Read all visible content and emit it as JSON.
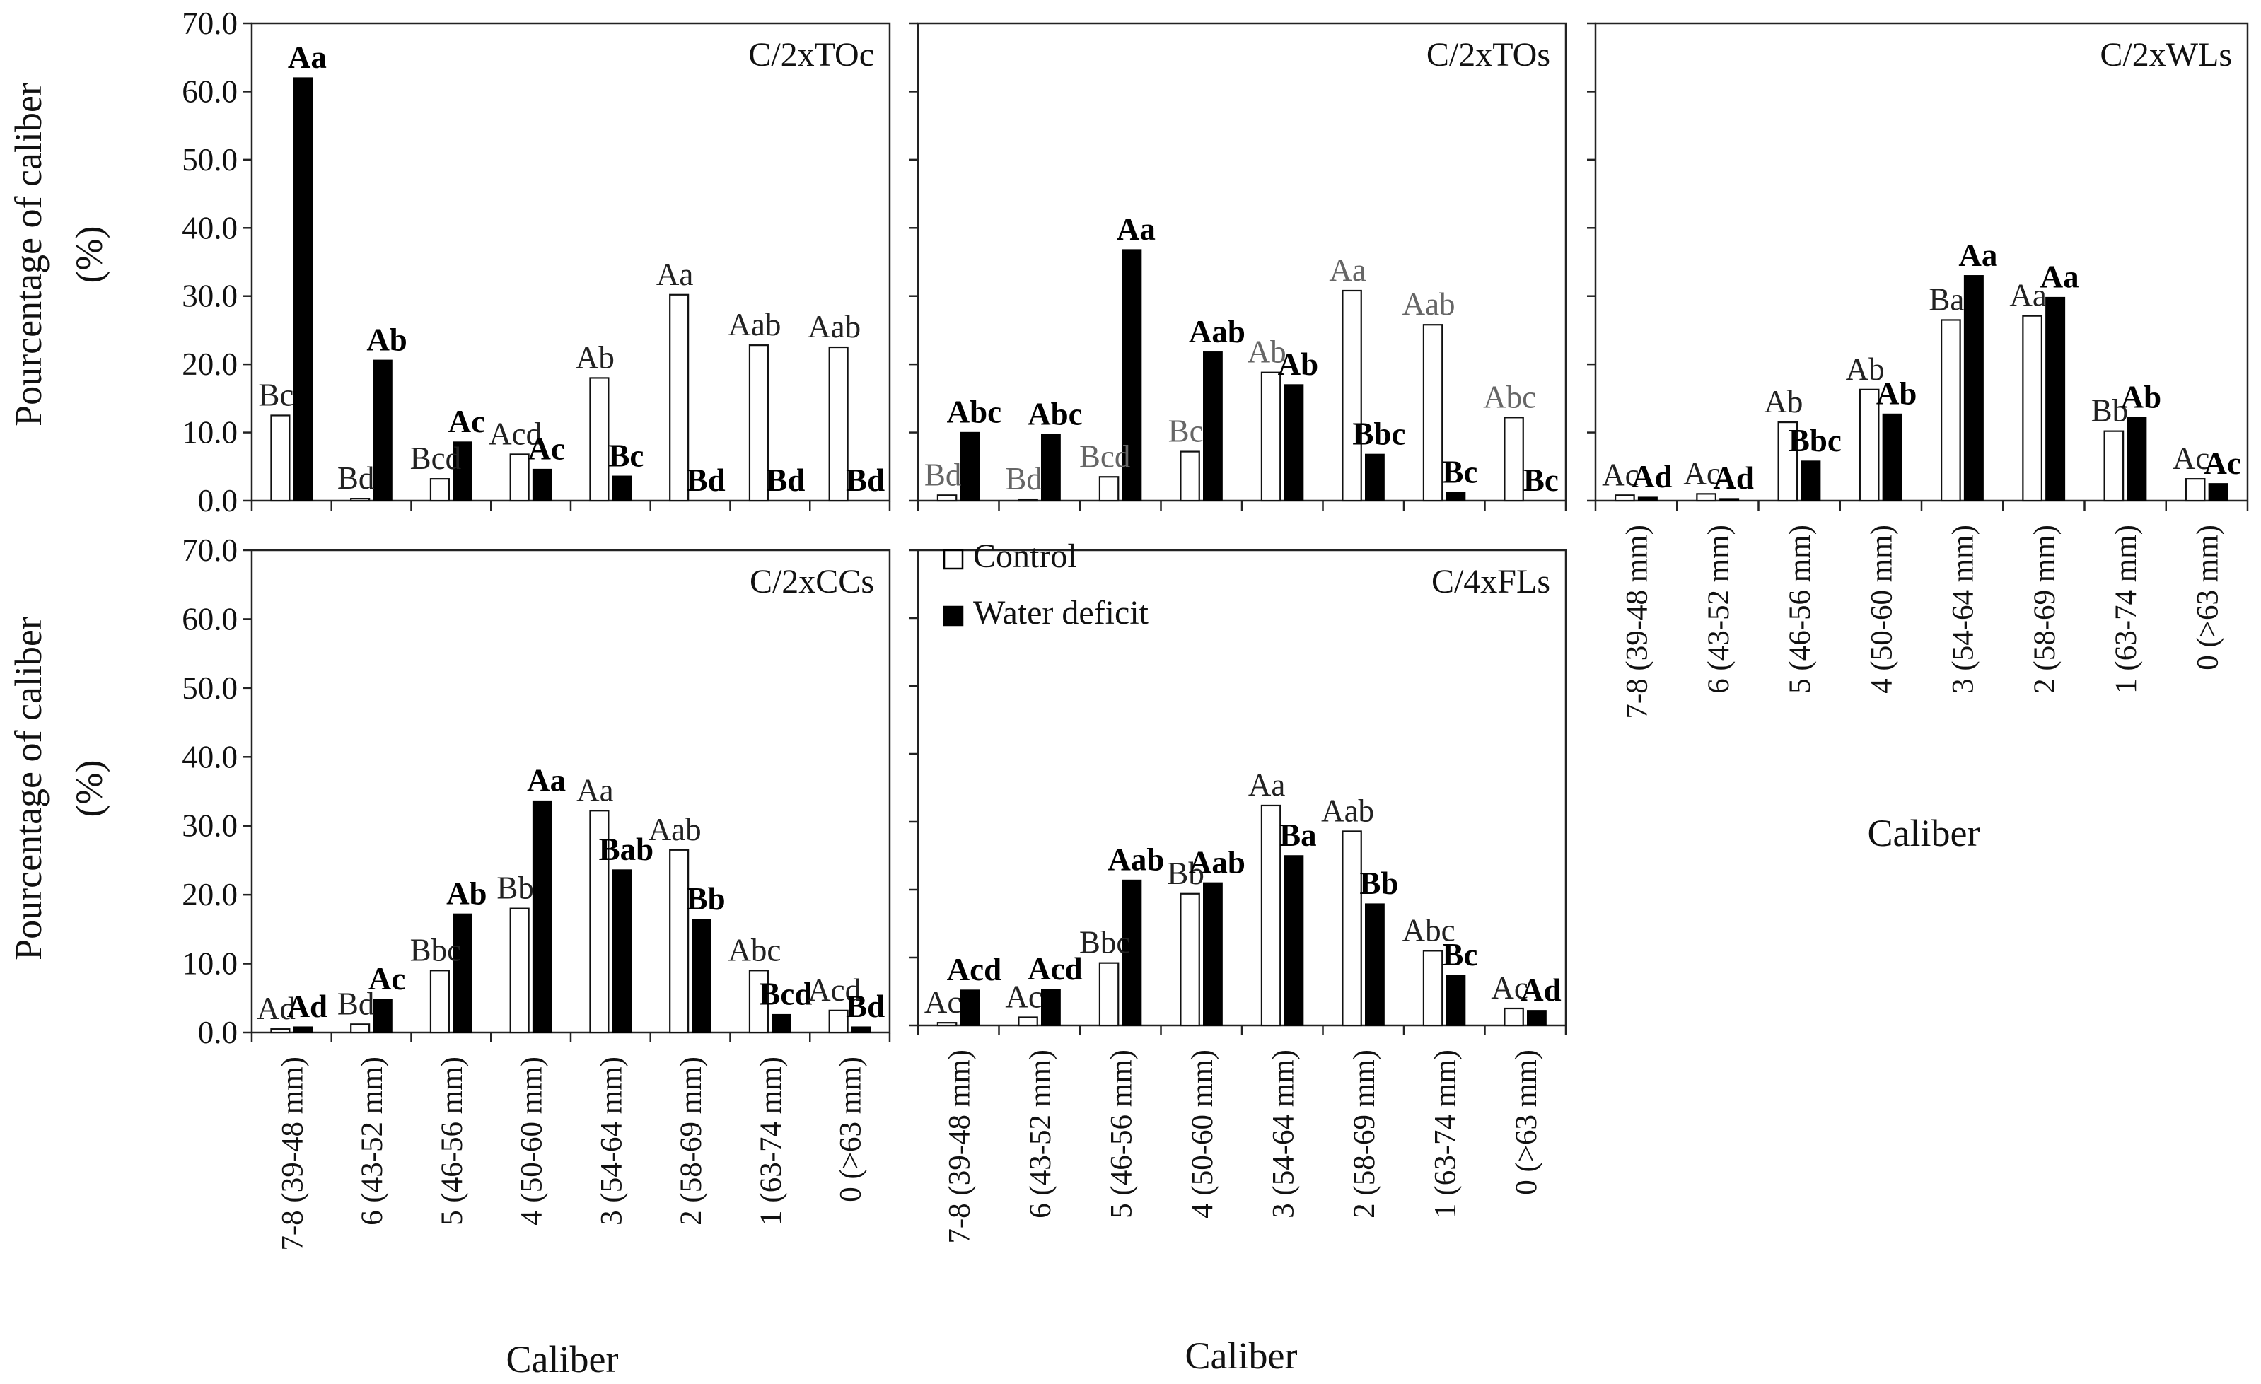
{
  "chart_data": {
    "type": "bar",
    "y_axis_label_line1": "Pourcentage of caliber",
    "y_axis_label_line2": "(%)",
    "x_axis_label": "Caliber",
    "categories": [
      "7-8 (39-48 mm)",
      "6 (43-52 mm)",
      "5 (46-56 mm)",
      "4 (50-60 mm)",
      "3 (54-64 mm)",
      "2 (58-69 mm)",
      "1 (63-74 mm)",
      "0 (>63 mm)"
    ],
    "ylim": [
      0,
      70
    ],
    "yticks": [
      "0.0",
      "10.0",
      "20.0",
      "30.0",
      "40.0",
      "50.0",
      "60.0",
      "70.0"
    ],
    "legend": {
      "control": "Control",
      "water_deficit": "Water deficit"
    },
    "panels": [
      {
        "title": "C/2xTOc",
        "series": [
          {
            "name": "Control",
            "values": [
              12.5,
              0.3,
              3.2,
              6.8,
              18.0,
              30.2,
              22.8,
              22.5
            ],
            "labels": [
              "Bc",
              "Bd",
              "Bcd",
              "Acd",
              "Ab",
              "Aa",
              "Aab",
              "Aab"
            ]
          },
          {
            "name": "Water deficit",
            "values": [
              62.0,
              20.6,
              8.6,
              4.6,
              3.6,
              0,
              0,
              0
            ],
            "labels": [
              "Aa",
              "Ab",
              "Ac",
              "Ac",
              "Bc",
              "Bd",
              "Bd",
              "Bd"
            ]
          }
        ]
      },
      {
        "title": "C/2xTOs",
        "series": [
          {
            "name": "Control",
            "values": [
              0.8,
              0.2,
              3.5,
              7.2,
              18.8,
              30.8,
              25.8,
              12.2
            ],
            "labels": [
              "Bd",
              "Bd",
              "Bcd",
              "Bc",
              "Ab",
              "Aa",
              "Aab",
              "Abc"
            ]
          },
          {
            "name": "Water deficit",
            "values": [
              10.0,
              9.7,
              36.8,
              21.8,
              17.0,
              6.8,
              1.2,
              0
            ],
            "labels": [
              "Abc",
              "Abc",
              "Aa",
              "Aab",
              "Ab",
              "Bbc",
              "Bc",
              "Bc"
            ]
          }
        ]
      },
      {
        "title": "C/2xWLs",
        "series": [
          {
            "name": "Control",
            "values": [
              0.8,
              1.0,
              11.5,
              16.3,
              26.5,
              27.1,
              10.2,
              3.2
            ],
            "labels": [
              "Ac",
              "Ac",
              "Ab",
              "Ab",
              "Ba",
              "Aa",
              "Bb",
              "Ac"
            ]
          },
          {
            "name": "Water deficit",
            "values": [
              0.5,
              0.3,
              5.8,
              12.7,
              33.0,
              29.8,
              12.2,
              2.5
            ],
            "labels": [
              "Ad",
              "Ad",
              "Bbc",
              "Ab",
              "Aa",
              "Aa",
              "Ab",
              "Ac"
            ]
          }
        ]
      },
      {
        "title": "C/2xCCs",
        "series": [
          {
            "name": "Control",
            "values": [
              0.5,
              1.2,
              9.0,
              18.0,
              32.2,
              26.5,
              9.0,
              3.2
            ],
            "labels": [
              "Ad",
              "Bd",
              "Bbc",
              "Bb",
              "Aa",
              "Aab",
              "Abc",
              "Acd"
            ]
          },
          {
            "name": "Water deficit",
            "values": [
              0.8,
              4.8,
              17.2,
              33.6,
              23.6,
              16.4,
              2.6,
              0.8
            ],
            "labels": [
              "Ad",
              "Ac",
              "Ab",
              "Aa",
              "Bab",
              "Bb",
              "Bcd",
              "Bd"
            ]
          }
        ]
      },
      {
        "title": "C/4xFLs",
        "series": [
          {
            "name": "Control",
            "values": [
              0.4,
              1.2,
              9.2,
              19.4,
              32.4,
              28.6,
              11.0,
              2.5
            ],
            "labels": [
              "Ac",
              "Ac",
              "Bbc",
              "Bb",
              "Aa",
              "Aab",
              "Abc",
              "Ac"
            ]
          },
          {
            "name": "Water deficit",
            "values": [
              5.2,
              5.3,
              21.4,
              21.0,
              25.0,
              17.9,
              7.4,
              2.2
            ],
            "labels": [
              "Acd",
              "Acd",
              "Aab",
              "Aab",
              "Ba",
              "Bb",
              "Bc",
              "Ad"
            ]
          }
        ]
      }
    ]
  }
}
